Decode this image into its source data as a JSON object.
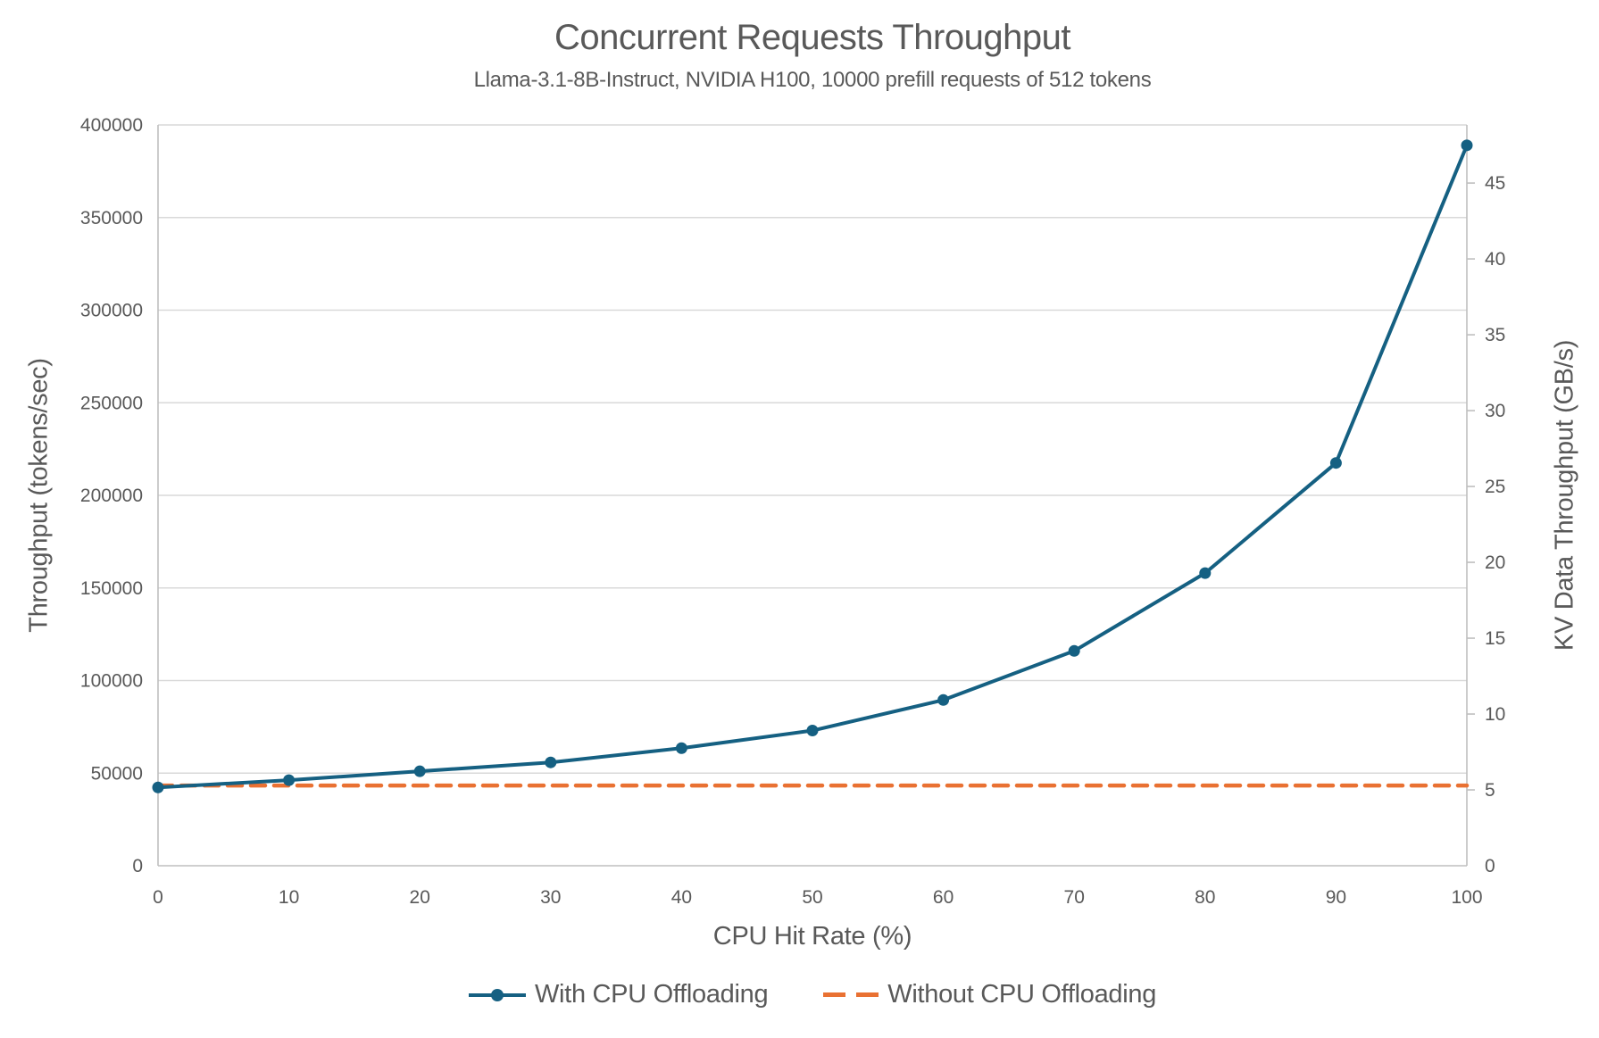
{
  "header": {
    "title": "Concurrent Requests Throughput",
    "subtitle": "Llama-3.1-8B-Instruct, NVIDIA H100, 10000 prefill requests of 512 tokens"
  },
  "chart_data": {
    "type": "line",
    "title": "Concurrent Requests Throughput",
    "subtitle": "Llama-3.1-8B-Instruct, NVIDIA H100, 10000 prefill requests of 512 tokens",
    "xlabel": "CPU Hit Rate (%)",
    "x": [
      0,
      10,
      20,
      30,
      40,
      50,
      60,
      70,
      80,
      90,
      100
    ],
    "x_ticks": [
      0,
      10,
      20,
      30,
      40,
      50,
      60,
      70,
      80,
      90,
      100
    ],
    "left_axis": {
      "label": "Throughput (tokens/sec)",
      "min": 0,
      "max": 400000,
      "ticks": [
        0,
        50000,
        100000,
        150000,
        200000,
        250000,
        300000,
        350000,
        400000
      ]
    },
    "right_axis": {
      "label": "KV Data Throughput (GB/s)",
      "min": 0,
      "max": 48.83,
      "ticks": [
        0,
        5,
        10,
        15,
        20,
        25,
        30,
        35,
        40,
        45
      ]
    },
    "grid": "horizontal",
    "legend_position": "bottom",
    "series": [
      {
        "name": "With CPU Offloading",
        "color": "#156082",
        "line_style": "solid",
        "marker": "circle",
        "axis": "left",
        "values": [
          42300,
          46200,
          51000,
          55800,
          63500,
          73000,
          89500,
          116000,
          158000,
          217500,
          389000
        ]
      },
      {
        "name": "Without CPU Offloading",
        "color": "#E97132",
        "line_style": "dashed",
        "marker": "none",
        "axis": "left",
        "values": [
          43300,
          43300,
          43300,
          43300,
          43300,
          43300,
          43300,
          43300,
          43300,
          43300,
          43300
        ]
      }
    ]
  },
  "colors": {
    "text": "#595959",
    "grid": "#D9D9D9",
    "axis_line": "#BFBFBF",
    "background": "#FFFFFF",
    "series_blue": "#156082",
    "series_orange": "#E97132"
  }
}
